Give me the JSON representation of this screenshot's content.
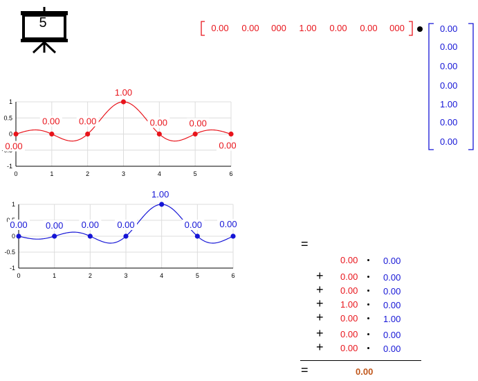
{
  "slide_number": "5",
  "row_vector": [
    "0.00",
    "0.00",
    "000",
    "1.00",
    "0.00",
    "0.00",
    "000"
  ],
  "column_vector": [
    "0.00",
    "0.00",
    "0.00",
    "0.00",
    "1.00",
    "0.00",
    "0.00"
  ],
  "chart_data": [
    {
      "type": "line",
      "x": [
        0,
        1,
        2,
        3,
        4,
        5,
        6
      ],
      "values": [
        0,
        0,
        0,
        1,
        0,
        0,
        0
      ],
      "point_labels": [
        "0.00",
        "0.00",
        "0.00",
        "1.00",
        "0.00",
        "0.00",
        "0.00"
      ],
      "xlim": [
        0,
        6
      ],
      "ylim": [
        -1,
        1
      ],
      "x_ticks": [
        "0",
        "1",
        "2",
        "3",
        "4",
        "5",
        "6"
      ],
      "y_ticks": [
        "1",
        "0.5",
        "0",
        "-0.5",
        "-1"
      ],
      "color": "#e8141b",
      "grid": true
    },
    {
      "type": "line",
      "x": [
        0,
        1,
        2,
        3,
        4,
        5,
        6
      ],
      "values": [
        0,
        0,
        0,
        0,
        1,
        0,
        0
      ],
      "point_labels": [
        "0.00",
        "0.00",
        "0.00",
        "0.00",
        "1.00",
        "0.00",
        "0.00"
      ],
      "xlim": [
        0,
        6
      ],
      "ylim": [
        -1,
        1
      ],
      "x_ticks": [
        "0",
        "1",
        "2",
        "3",
        "4",
        "5",
        "6"
      ],
      "y_ticks": [
        "1",
        "0.5",
        "0",
        "-0.5",
        "-1"
      ],
      "color": "#1515d6",
      "grid": true
    }
  ],
  "dot_product": {
    "equals": "=",
    "terms": [
      {
        "op": "",
        "a": "0.00",
        "b": "0.00"
      },
      {
        "op": "+",
        "a": "0.00",
        "b": "0.00"
      },
      {
        "op": "+",
        "a": "0.00",
        "b": "0.00"
      },
      {
        "op": "+",
        "a": "1.00",
        "b": "0.00"
      },
      {
        "op": "+",
        "a": "0.00",
        "b": "1.00"
      },
      {
        "op": "+",
        "a": "0.00",
        "b": "0.00"
      },
      {
        "op": "+",
        "a": "0.00",
        "b": "0.00"
      }
    ],
    "result": "0.00"
  },
  "colors": {
    "red": "#e8141b",
    "blue": "#1515d6",
    "result": "#c0561a"
  }
}
